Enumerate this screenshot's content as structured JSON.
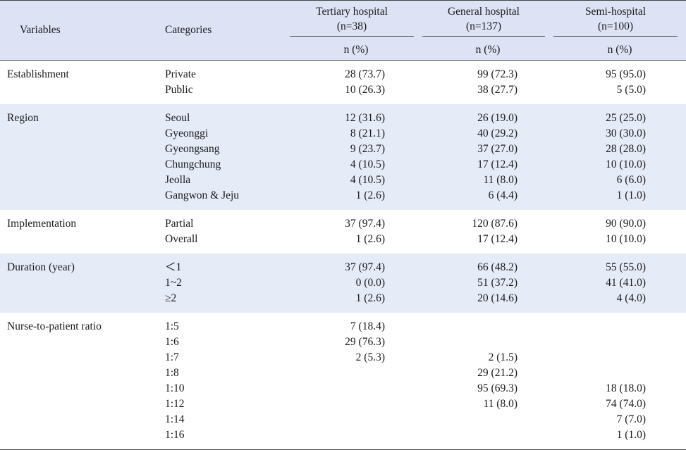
{
  "header": {
    "variables": "Variables",
    "categories": "Categories",
    "groups": [
      {
        "name": "Tertiary hospital",
        "n": "(n=38)"
      },
      {
        "name": "General hospital",
        "n": "(n=137)"
      },
      {
        "name": "Semi-hospital",
        "n": "(n=100)"
      }
    ],
    "subheader": "n (%)"
  },
  "rows": [
    {
      "variable": "Establishment",
      "categories": [
        "Private",
        "Public"
      ],
      "tertiary": [
        "28 (73.7)",
        "10 (26.3)"
      ],
      "general": [
        "99 (72.3)",
        "38 (27.7)"
      ],
      "semi": [
        "95 (95.0)",
        "5 (5.0)"
      ]
    },
    {
      "variable": "Region",
      "categories": [
        "Seoul",
        "Gyeonggi",
        "Gyeongsang",
        "Chungchung",
        "Jeolla",
        "Gangwon & Jeju"
      ],
      "tertiary": [
        "12 (31.6)",
        "8 (21.1)",
        "9 (23.7)",
        "4 (10.5)",
        "4 (10.5)",
        "1 (2.6)"
      ],
      "general": [
        "26 (19.0)",
        "40 (29.2)",
        "37 (27.0)",
        "17 (12.4)",
        "11 (8.0)",
        "6 (4.4)"
      ],
      "semi": [
        "25 (25.0)",
        "30 (30.0)",
        "28 (28.0)",
        "10 (10.0)",
        "6 (6.0)",
        "1 (1.0)"
      ]
    },
    {
      "variable": "Implementation",
      "categories": [
        "Partial",
        "Overall"
      ],
      "tertiary": [
        "37 (97.4)",
        "1 (2.6)"
      ],
      "general": [
        "120 (87.6)",
        "17 (12.4)"
      ],
      "semi": [
        "90 (90.0)",
        "10 (10.0)"
      ]
    },
    {
      "variable": "Duration (year)",
      "categories": [
        "＜1",
        "1~2",
        "≥2"
      ],
      "tertiary": [
        "37 (97.4)",
        "0 (0.0)",
        "1 (2.6)"
      ],
      "general": [
        "66 (48.2)",
        "51 (37.2)",
        "20 (14.6)"
      ],
      "semi": [
        "55 (55.0)",
        "41 (41.0)",
        "4 (4.0)"
      ]
    },
    {
      "variable": "Nurse-to-patient ratio",
      "categories": [
        "1:5",
        "1:6",
        "1:7",
        "1:8",
        "1:10",
        "1:12",
        "1:14",
        "1:16"
      ],
      "tertiary": [
        "7 (18.4)",
        "29 (76.3)",
        "2 (5.3)",
        "",
        "",
        "",
        "",
        ""
      ],
      "general": [
        "",
        "",
        "2 (1.5)",
        "29 (21.2)",
        "95 (69.3)",
        "11 (8.0)",
        "",
        ""
      ],
      "semi": [
        "",
        "",
        "",
        "",
        "18 (18.0)",
        "74 (74.0)",
        "7 (7.0)",
        "1 (1.0)"
      ]
    }
  ]
}
